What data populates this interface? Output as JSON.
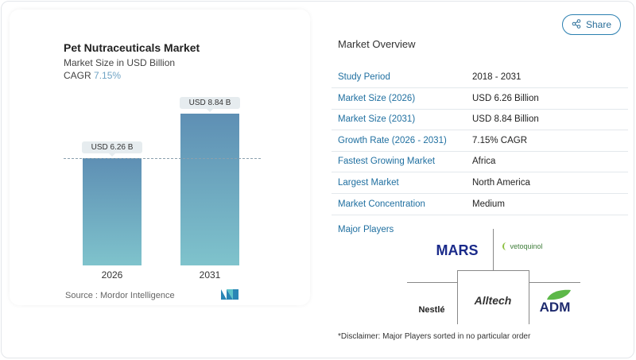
{
  "share_label": "Share",
  "chart_data": {
    "type": "bar",
    "title": "Pet Nutraceuticals Market",
    "subtitle": "Market Size in USD Billion",
    "cagr_label": "CAGR",
    "cagr_value": "7.15%",
    "categories": [
      "2026",
      "2031"
    ],
    "values": [
      6.26,
      8.84
    ],
    "data_labels": [
      "USD 6.26 B",
      "USD 8.84 B"
    ],
    "bar_color_top": "#5e8fb4",
    "bar_color_bottom": "#7fc3cc",
    "source": "Source :  Mordor Intelligence"
  },
  "overview": {
    "title": "Market Overview",
    "rows": [
      {
        "label": "Study Period",
        "value": "2018 - 2031"
      },
      {
        "label": "Market Size (2026)",
        "value": "USD 6.26 Billion"
      },
      {
        "label": "Market Size (2031)",
        "value": "USD 8.84 Billion"
      },
      {
        "label": "Growth Rate (2026 - 2031)",
        "value": "7.15% CAGR"
      },
      {
        "label": "Fastest Growing Market",
        "value": "Africa"
      },
      {
        "label": "Largest Market",
        "value": "North America"
      },
      {
        "label": "Market Concentration",
        "value": "Medium"
      }
    ]
  },
  "players": {
    "title": "Major Players",
    "logos": [
      "MARS",
      "vetoquinol",
      "Nestlé",
      "Alltech",
      "ADM"
    ],
    "disclaimer": "*Disclaimer: Major Players sorted in no particular order"
  }
}
